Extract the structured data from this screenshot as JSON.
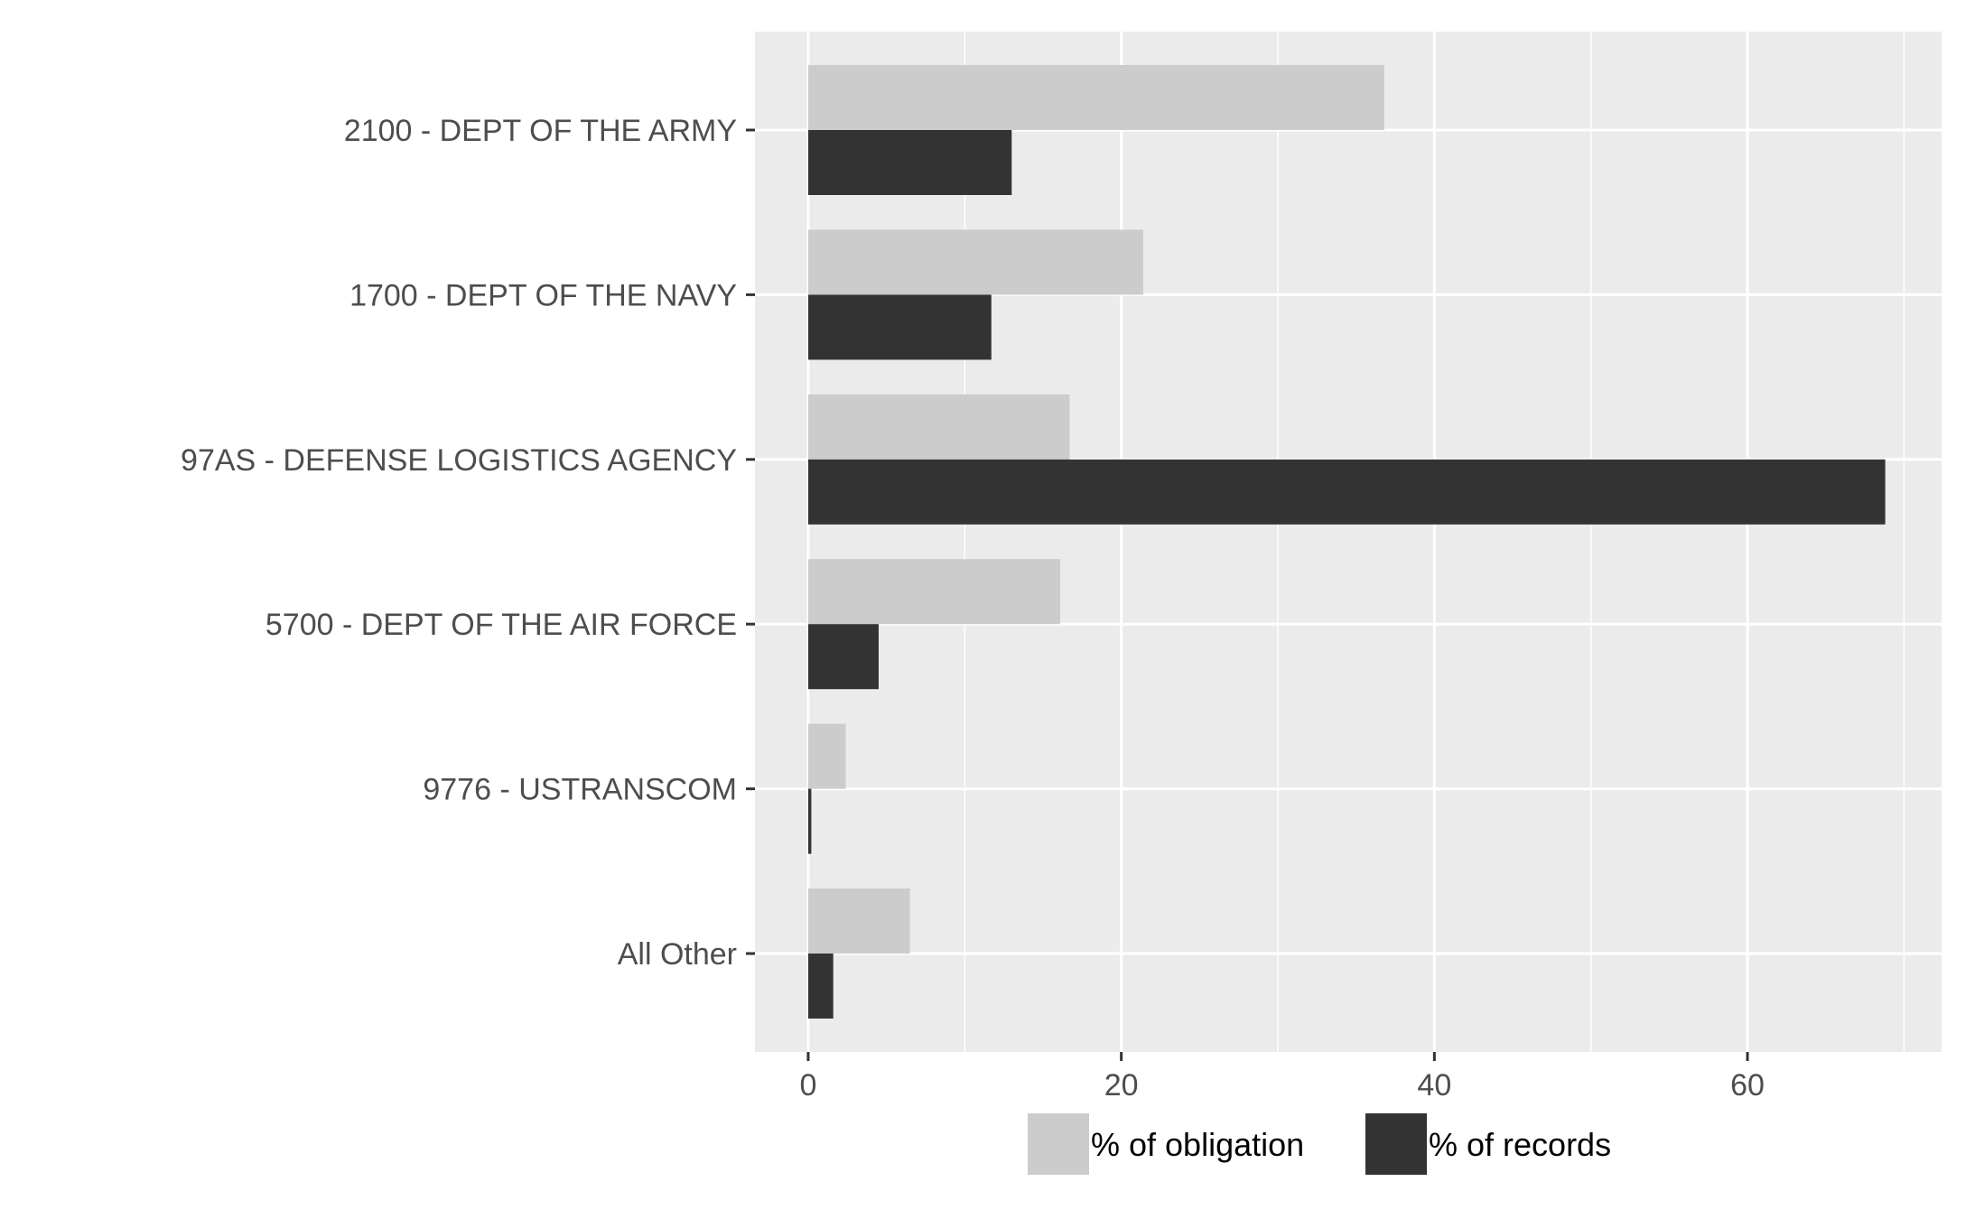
{
  "chart_data": {
    "type": "bar",
    "orientation": "horizontal",
    "categories": [
      "2100  -  DEPT OF THE ARMY",
      "1700  -  DEPT OF THE NAVY",
      "97AS  -  DEFENSE LOGISTICS AGENCY",
      "5700  -  DEPT OF THE AIR FORCE",
      "9776  -  USTRANSCOM",
      "All Other"
    ],
    "series": [
      {
        "name": "% of obligation",
        "color": "#cccccc",
        "values": [
          36.8,
          21.4,
          16.7,
          16.1,
          2.4,
          6.5
        ]
      },
      {
        "name": "% of records",
        "color": "#333333",
        "values": [
          13.0,
          11.7,
          68.8,
          4.5,
          0.2,
          1.6
        ]
      }
    ],
    "xlim": [
      -3.4,
      72.4
    ],
    "xticks": [
      0,
      20,
      40,
      60
    ],
    "xtick_labels": [
      "0",
      "20",
      "40",
      "60"
    ],
    "title": "",
    "xlabel": "",
    "ylabel": "",
    "grid": true,
    "legend_position": "bottom",
    "panel_color": "#ebebeb",
    "grid_color": "#ffffff"
  }
}
